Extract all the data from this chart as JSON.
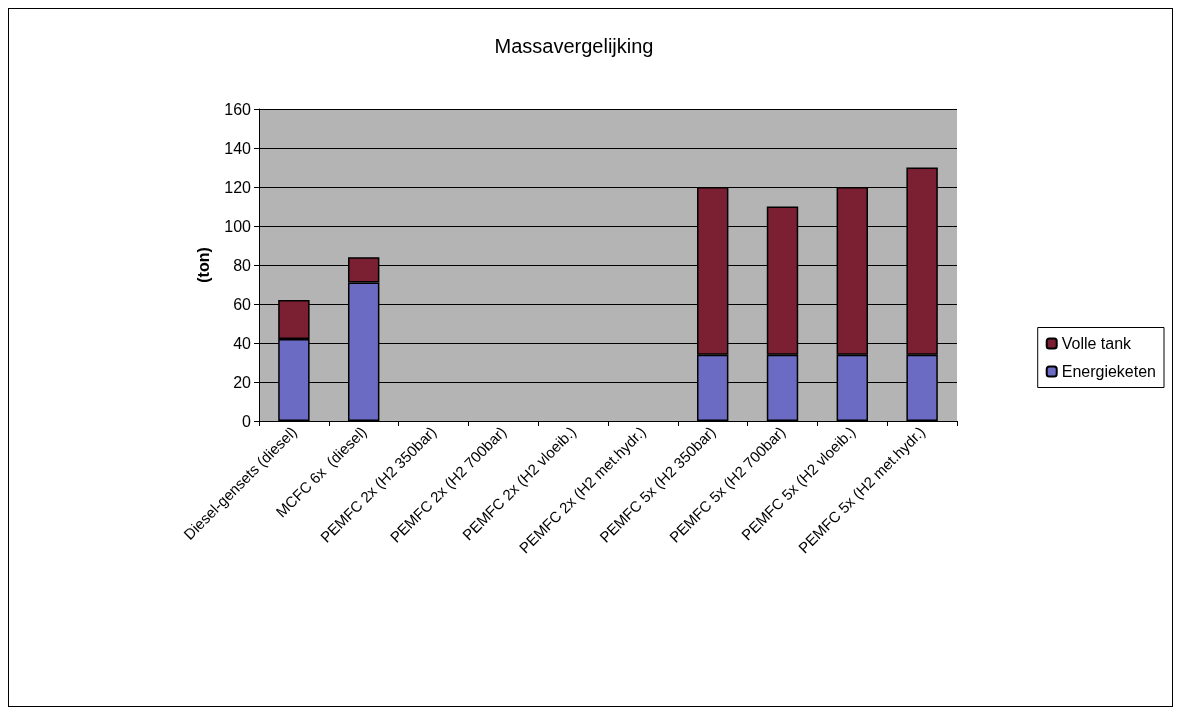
{
  "chart_data": {
    "type": "bar",
    "title": "Massavergelijking",
    "ylabel": "(ton)",
    "stacked": true,
    "categories": [
      "Diesel-gensets (diesel)",
      "MCFC 6x  (diesel)",
      "PEMFC 2x (H2 350bar)",
      "PEMFC 2x (H2 700bar)",
      "PEMFC 2x (H2 vloeib.)",
      "PEMFC 2x (H2 met.hydr.)",
      "PEMFC 5x (H2 350bar)",
      "PEMFC 5x (H2 700bar)",
      "PEMFC 5x (H2 vloeib.)",
      "PEMFC 5x (H2 met.hydr.)"
    ],
    "series": [
      {
        "name": "Energieketen",
        "color": "#6b6bc4",
        "values": [
          42,
          71,
          null,
          null,
          null,
          null,
          34,
          34,
          34,
          34
        ]
      },
      {
        "name": "Volle tank",
        "color": "#7a2032",
        "values": [
          20,
          13,
          null,
          null,
          null,
          null,
          86,
          76,
          86,
          96
        ]
      }
    ],
    "ylim": [
      0,
      160
    ],
    "yticks": [
      0,
      20,
      40,
      60,
      80,
      100,
      120,
      140,
      160
    ],
    "grid": "y",
    "legend": "right"
  }
}
